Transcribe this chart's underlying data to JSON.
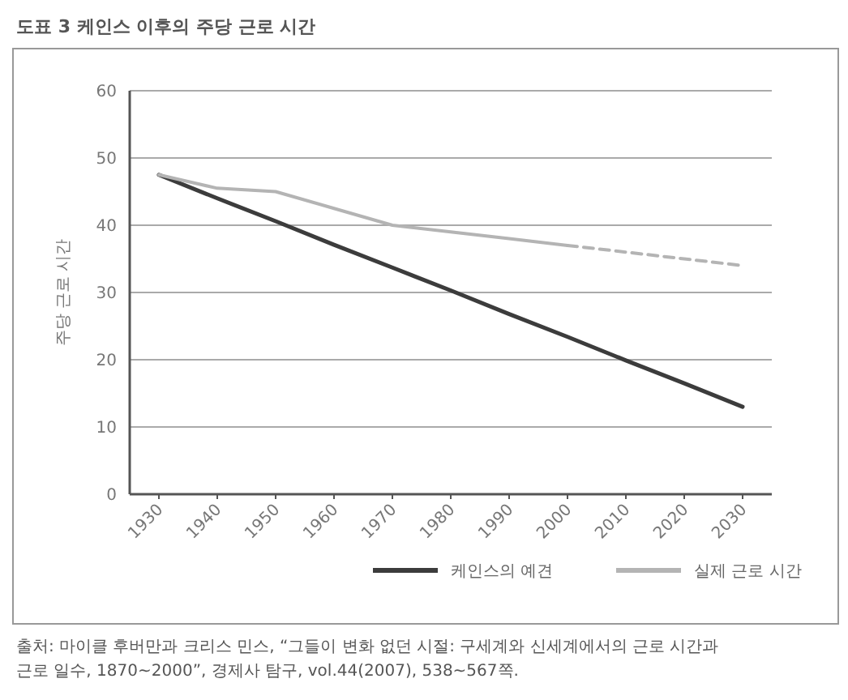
{
  "chart_data": {
    "type": "line",
    "title": "도표 3 케인스 이후의 주당 근로 시간",
    "ylabel": "주당 근로 시간",
    "categories": [
      "1930",
      "1940",
      "1950",
      "1960",
      "1970",
      "1980",
      "1990",
      "2000",
      "2010",
      "2020",
      "2030"
    ],
    "series": [
      {
        "name": "케인스의 예견",
        "color": "#3c3c3c",
        "values": [
          47.5,
          44,
          40.6,
          37.1,
          33.7,
          30.3,
          26.8,
          23.4,
          19.9,
          16.5,
          13
        ]
      },
      {
        "name": "실제 근로 시간",
        "color": "#b4b4b4",
        "values": [
          47.5,
          45.5,
          45,
          42.5,
          40,
          39,
          38,
          37,
          null,
          null,
          null
        ]
      },
      {
        "color": "#b4b4b4",
        "line_style": "dashed",
        "values": [
          null,
          null,
          null,
          null,
          null,
          null,
          null,
          37,
          36,
          35,
          34
        ]
      }
    ],
    "ylim": [
      0,
      60
    ],
    "yticks": [
      0,
      10,
      20,
      30,
      40,
      50,
      60
    ],
    "grid": "y",
    "legend": "bottom",
    "marker": "none",
    "line_style": "solid",
    "annotations": [
      "출처: 마이클 후버만과 크리스 민스, “그들이 변화 없던 시절: 구세계와 신세계에서의 근로 시간과",
      "근로 일수, 1870~2000”, 경제사 탐구, vol.44(2007), 538~567쪽."
    ]
  }
}
